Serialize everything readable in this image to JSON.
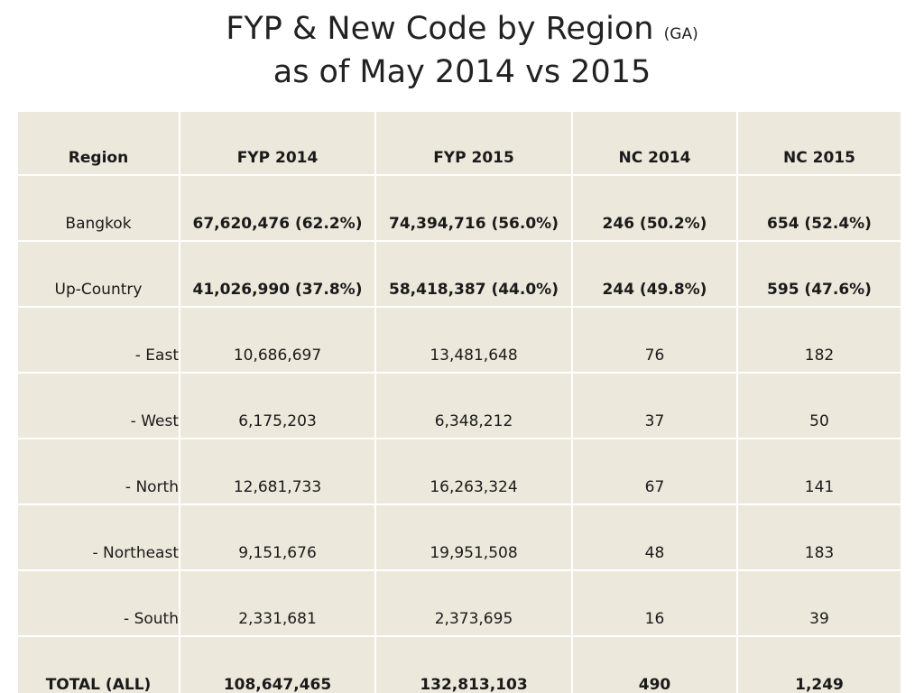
{
  "title": {
    "line1": "FYP & New Code by Region",
    "tag": "(GA)",
    "line2": "as of May 2014 vs 2015"
  },
  "table": {
    "header": [
      "Region",
      "FYP 2014",
      "FYP 2015",
      "NC 2014",
      "NC 2015"
    ],
    "rows": [
      [
        "Bangkok",
        "67,620,476 (62.2%)",
        "74,394,716 (56.0%)",
        "246 (50.2%)",
        "654 (52.4%)"
      ],
      [
        "Up-Country",
        "41,026,990 (37.8%)",
        "58,418,387 (44.0%)",
        "244 (49.8%)",
        "595 (47.6%)"
      ],
      [
        "- East",
        "10,686,697",
        "13,481,648",
        "76",
        "182"
      ],
      [
        "- West",
        "6,175,203",
        "6,348,212",
        "37",
        "50"
      ],
      [
        "- North",
        "12,681,733",
        "16,263,324",
        "67",
        "141"
      ],
      [
        "- Northeast",
        "9,151,676",
        "19,951,508",
        "48",
        "183"
      ],
      [
        "- South",
        "2,331,681",
        "2,373,695",
        "16",
        "39"
      ],
      [
        "TOTAL (ALL)",
        "108,647,465",
        "132,813,103",
        "490",
        "1,249"
      ]
    ]
  }
}
